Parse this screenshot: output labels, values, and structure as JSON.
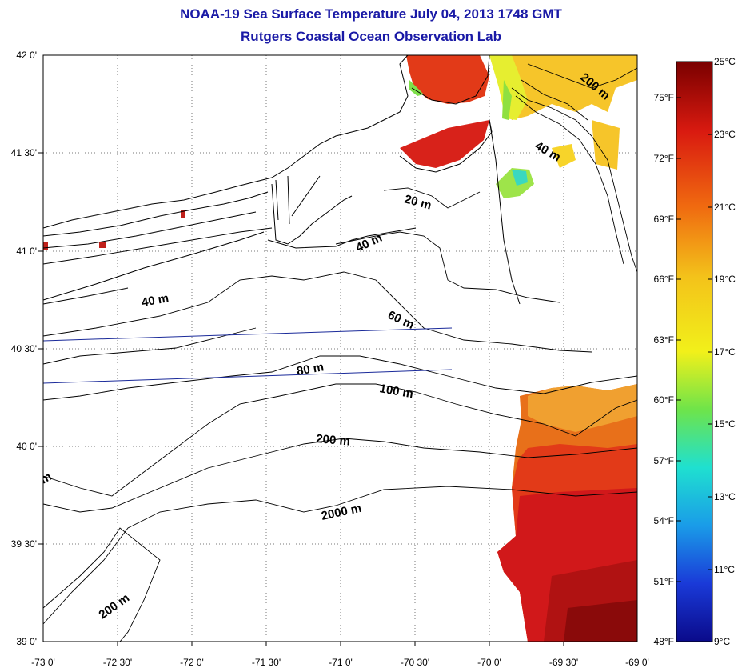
{
  "header": {
    "title": "NOAA-19 Sea Surface Temperature July 04, 2013 1748 GMT",
    "subtitle": "Rutgers Coastal Ocean Observation Lab"
  },
  "axes": {
    "longitude_labels": [
      "-73 0'",
      "-72 30'",
      "-72 0'",
      "-71 30'",
      "-71 0'",
      "-70 30'",
      "-70 0'",
      "-69 30'",
      "-69 0'"
    ],
    "latitude_labels": [
      "42 0'",
      "41 30'",
      "41 0'",
      "40 30'",
      "40 0'",
      "39 30'",
      "39 0'"
    ]
  },
  "colorbar": {
    "celsius_labels": [
      "25°C",
      "23°C",
      "21°C",
      "19°C",
      "17°C",
      "15°C",
      "13°C",
      "11°C",
      "9°C"
    ],
    "fahrenheit_labels": [
      "75°F",
      "72°F",
      "69°F",
      "66°F",
      "63°F",
      "60°F",
      "57°F",
      "54°F",
      "51°F",
      "48°F"
    ],
    "gradient_colors": [
      "#7a0000",
      "#d91a10",
      "#f06a10",
      "#f3c21a",
      "#f2f01a",
      "#6ee44a",
      "#1fe0d0",
      "#1a9ce8",
      "#1a3ad8",
      "#0a0a8a"
    ]
  },
  "contours": {
    "labels": [
      "200 m",
      "40 m",
      "20 m",
      "40 m",
      "40 m",
      "60 m",
      "80 m",
      "100 m",
      "200 m",
      "2000 m",
      "200 m",
      "m"
    ]
  },
  "colors": {
    "title": "#1a1aa6",
    "transect": "#1a2a9a"
  }
}
